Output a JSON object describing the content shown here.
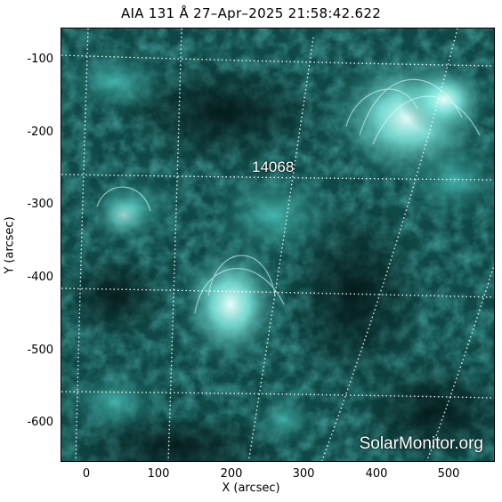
{
  "title": "AIA 131 Å 27–Apr–2025 21:58:42.622",
  "active_region": "14068",
  "watermark": "SolarMonitor.org",
  "axes": {
    "xlabel": "X (arcsec)",
    "ylabel": "Y (arcsec)",
    "xticks": [
      "0",
      "100",
      "200",
      "300",
      "400",
      "500"
    ],
    "yticks": [
      "-100",
      "-200",
      "-300",
      "-400",
      "-500",
      "-600"
    ]
  },
  "colors": {
    "background": "#0c3a3a",
    "bright": "#bff7f2",
    "grid": "#ffffff"
  }
}
